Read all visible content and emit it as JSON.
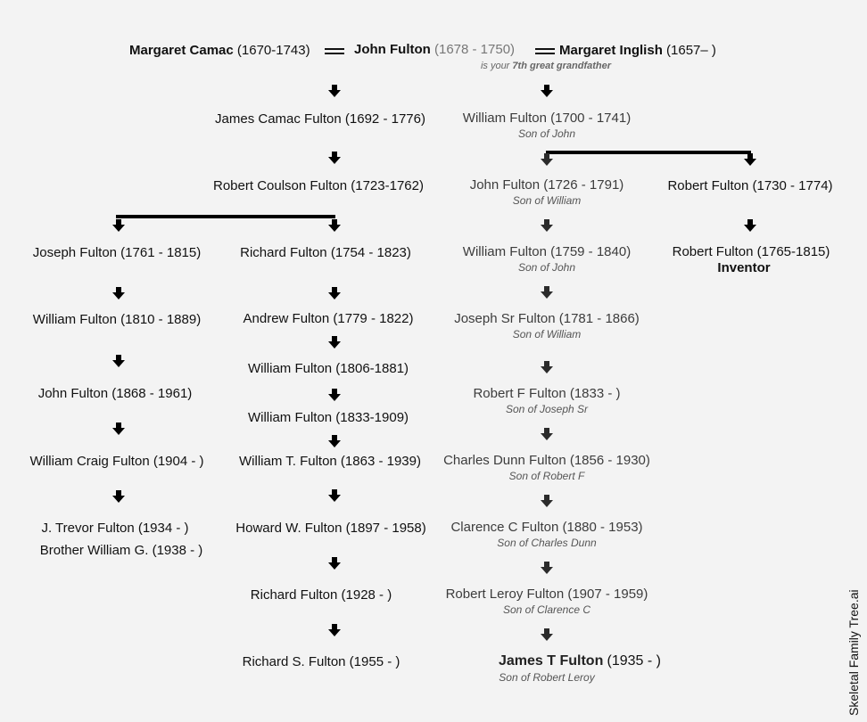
{
  "header": {
    "wife1_name": "Margaret Camac",
    "wife1_dates": "(1670-1743)",
    "main_name": "John Fulton",
    "main_dates": "(1678 - 1750)",
    "wife2_name": "Margaret Inglish",
    "wife2_dates": "(1657– )",
    "relation_prefix": "is your",
    "relation_bold": "7th great grandfather"
  },
  "col1": {
    "names": [
      "Joseph Fulton (1761 - 1815)",
      "William Fulton (1810 - 1889)",
      "John Fulton (1868 - 1961)",
      "William Craig Fulton (1904 -  )",
      "J. Trevor Fulton (1934 -  )",
      "Brother William G. (1938 -  )"
    ]
  },
  "col2": {
    "names": [
      "James Camac Fulton (1692 - 1776)",
      "Robert Coulson Fulton (1723-1762)",
      "Richard Fulton (1754 - 1823)",
      "Andrew Fulton (1779 - 1822)",
      "William Fulton (1806-1881)",
      "William Fulton (1833-1909)",
      "William T. Fulton (1863 - 1939)",
      "Howard W. Fulton (1897 - 1958)",
      "Richard Fulton (1928 -  )",
      "Richard S. Fulton (1955 -  )"
    ]
  },
  "col3": {
    "names": [
      "William Fulton (1700 - 1741)",
      "John Fulton (1726 - 1791)",
      "William Fulton (1759 - 1840)",
      "Joseph Sr Fulton (1781 - 1866)",
      "Robert F Fulton (1833 - )",
      "Charles Dunn Fulton (1856 - 1930)",
      "Clarence C Fulton (1880 - 1953)",
      "Robert Leroy Fulton (1907 - 1959)"
    ],
    "subs": [
      "Son of John",
      "Son of William",
      "Son of John",
      "Son of William",
      "Son of Joseph Sr",
      "Son of Robert F",
      "Son of Charles Dunn",
      "Son of Clarence C",
      "Son of Robert Leroy"
    ],
    "last_name": "James T Fulton",
    "last_dates": "(1935 -  )"
  },
  "col4": {
    "names": [
      "Robert Fulton (1730 - 1774)",
      "Robert Fulton (1765-1815)"
    ],
    "note": "Inventor"
  },
  "watermark": "Skeletal Family Tree.ai"
}
